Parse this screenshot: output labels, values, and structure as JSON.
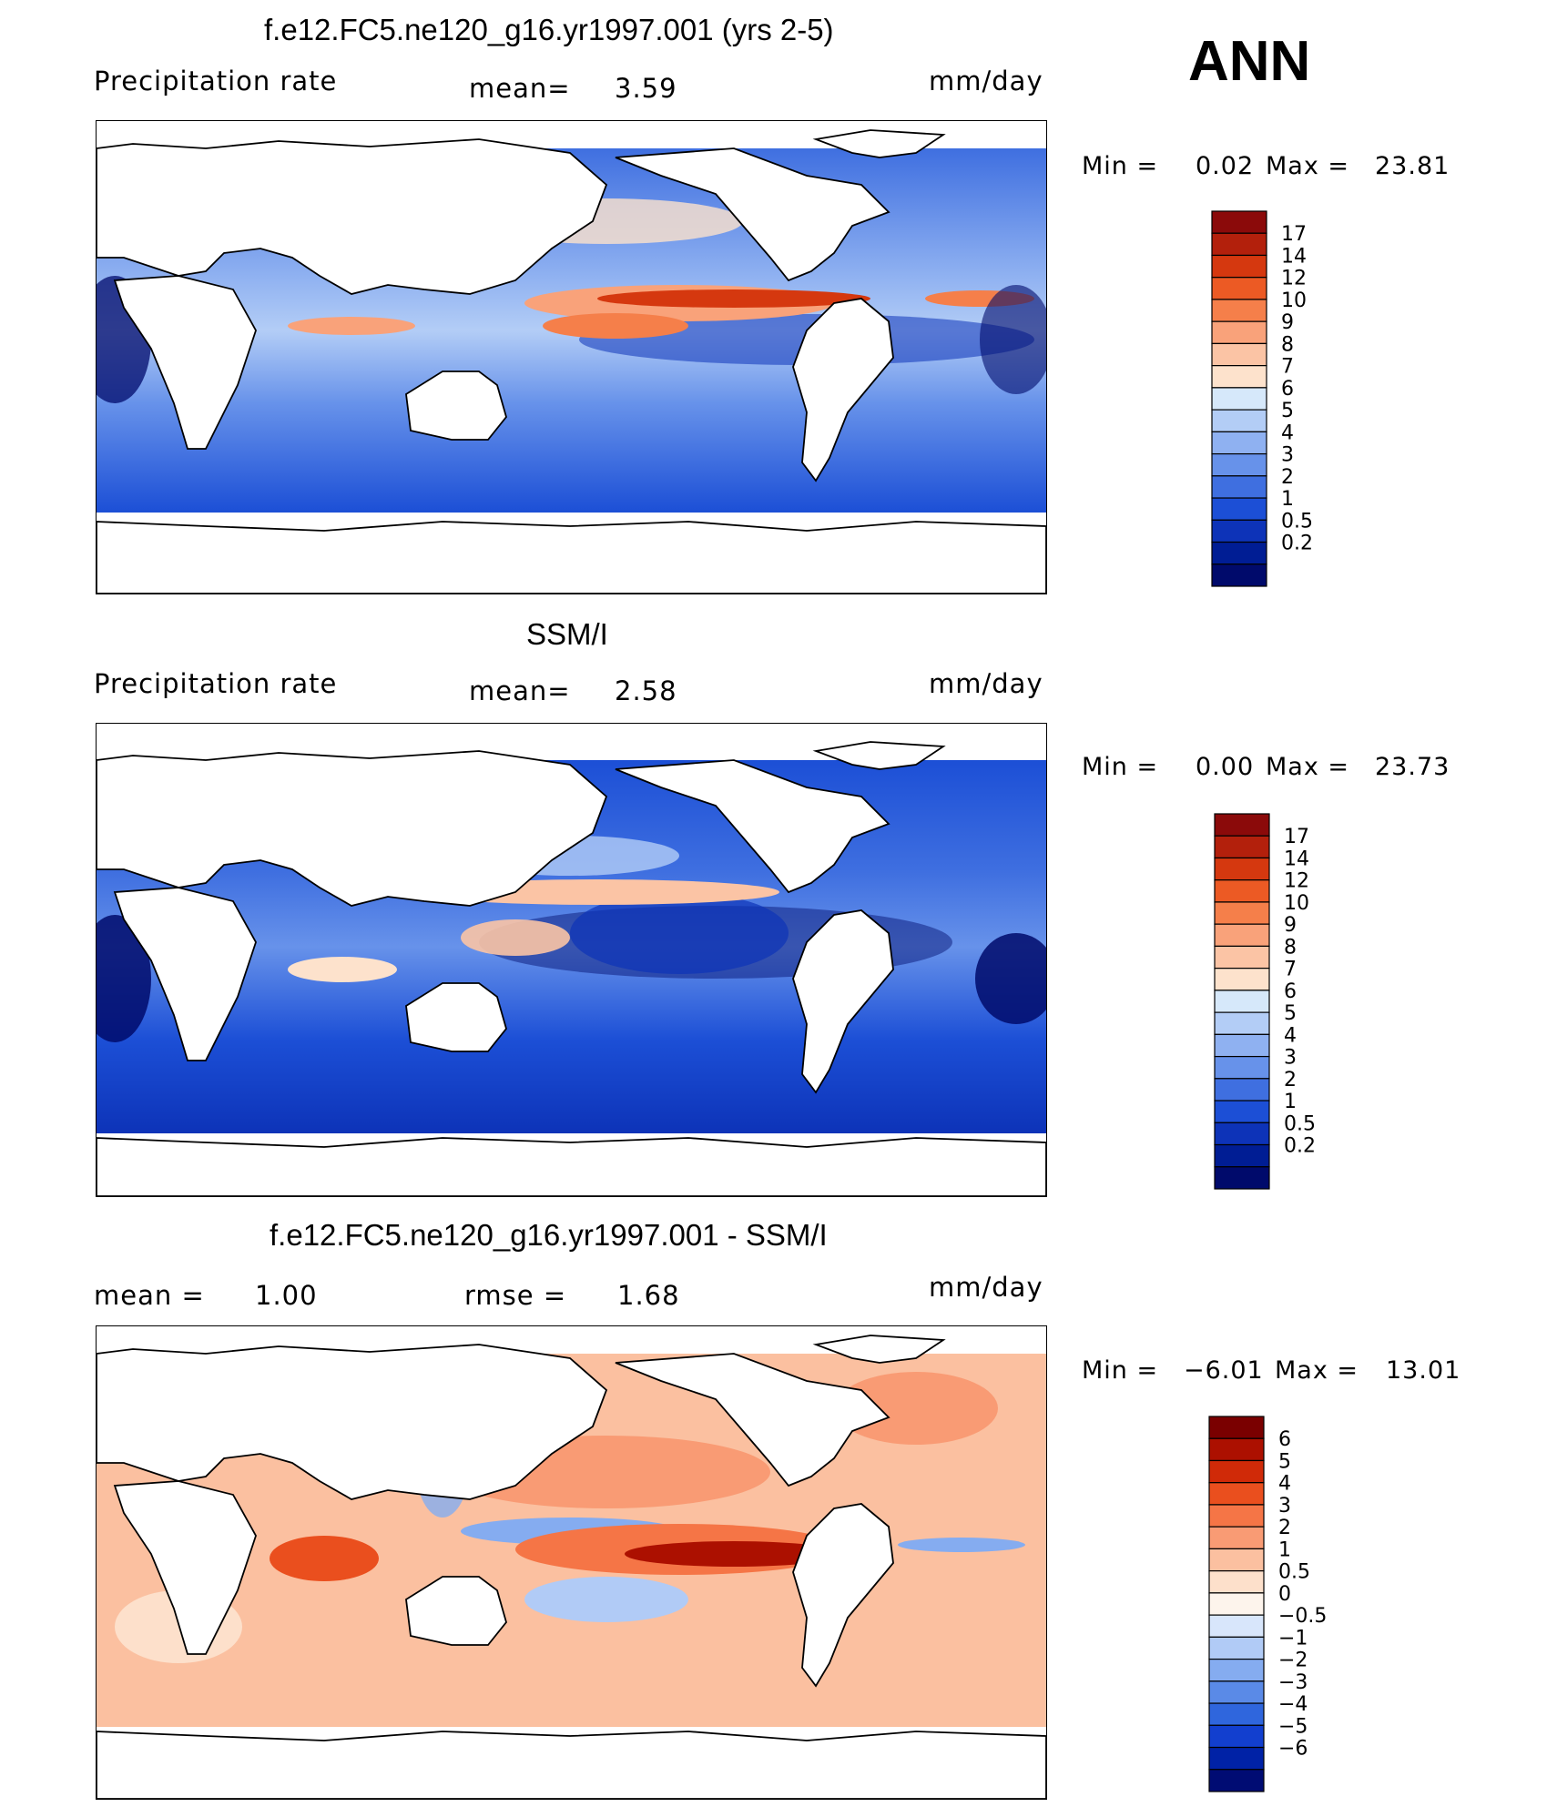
{
  "season": "ANN",
  "panels": [
    {
      "title": "f.e12.FC5.ne120_g16.yr1997.001 (yrs 2-5)",
      "left_label": "Precipitation  rate",
      "mid_label": "mean=",
      "mid_value": "3.59",
      "units": "mm/day",
      "min_label": "Min  =",
      "min_value": "0.02",
      "max_label": "Max  =",
      "max_value": "23.81",
      "colorbar_labels": [
        "17",
        "14",
        "12",
        "10",
        "9",
        "8",
        "7",
        "6",
        "5",
        "4",
        "3",
        "2",
        "1",
        "0.5",
        "0.2"
      ]
    },
    {
      "title": "SSM/I",
      "left_label": "Precipitation  rate",
      "mid_label": "mean=",
      "mid_value": "2.58",
      "units": "mm/day",
      "min_label": "Min  =",
      "min_value": "0.00",
      "max_label": "Max  =",
      "max_value": "23.73",
      "colorbar_labels": [
        "17",
        "14",
        "12",
        "10",
        "9",
        "8",
        "7",
        "6",
        "5",
        "4",
        "3",
        "2",
        "1",
        "0.5",
        "0.2"
      ]
    },
    {
      "title": "f.e12.FC5.ne120_g16.yr1997.001 - SSM/I",
      "left_label": "mean  =",
      "left_value": "1.00",
      "mid_label": "rmse  =",
      "mid_value": "1.68",
      "units": "mm/day",
      "min_label": "Min  =",
      "min_value": "−6.01",
      "max_label": "Max  =",
      "max_value": "13.01",
      "colorbar_labels": [
        "6",
        "5",
        "4",
        "3",
        "2",
        "1",
        "0.5",
        "0",
        "−0.5",
        "−1",
        "−2",
        "−3",
        "−4",
        "−5",
        "−6"
      ]
    }
  ],
  "colors": {
    "precip": [
      "#8b0a0a",
      "#b3200c",
      "#d5380f",
      "#ec5a24",
      "#f57f4a",
      "#f9a27a",
      "#fbc4a5",
      "#fde2cc",
      "#d6e8fa",
      "#b3cdf6",
      "#8fb1f1",
      "#6792ea",
      "#3f6fe0",
      "#1c4fd6",
      "#0d33b8",
      "#001d94",
      "#000a6b"
    ],
    "anomaly": [
      "#7a0000",
      "#ac1000",
      "#d02a08",
      "#ea4f1e",
      "#f57546",
      "#f99b74",
      "#fbc0a0",
      "#fde0cb",
      "#fdf4ec",
      "#d8e6fb",
      "#b1cbf6",
      "#85acf0",
      "#5a8ae7",
      "#2f66dd",
      "#123fcf",
      "#0022a6",
      "#000c73"
    ]
  }
}
